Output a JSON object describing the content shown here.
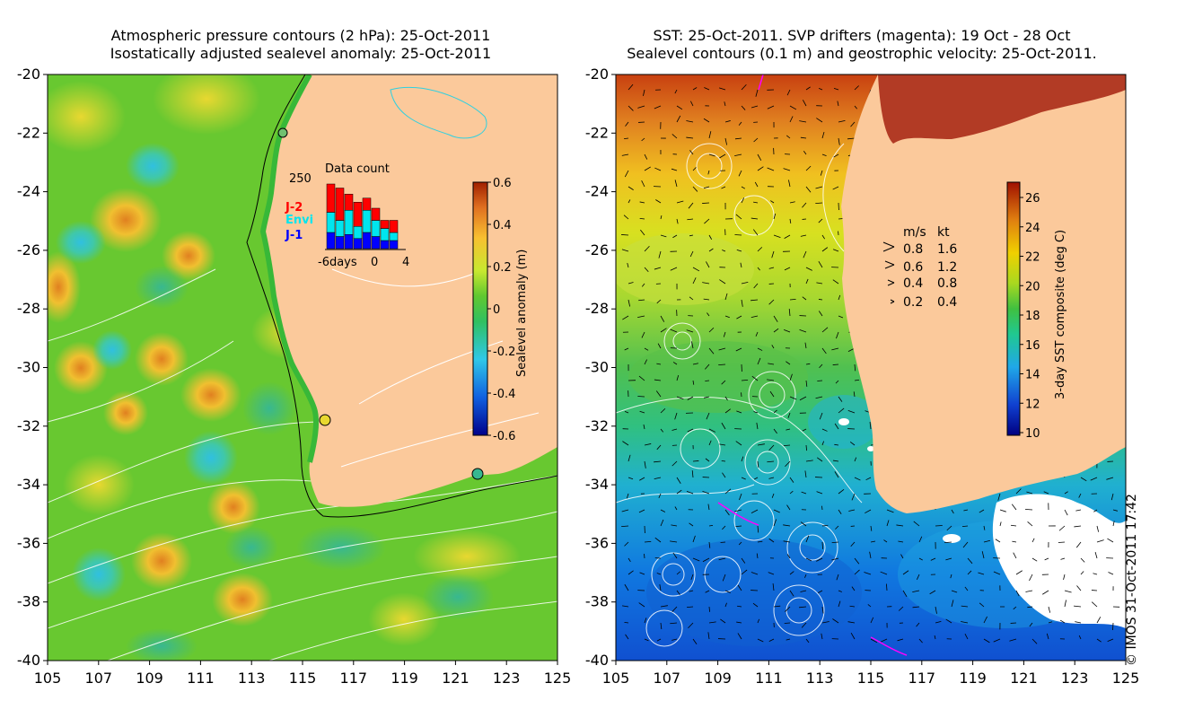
{
  "left_panel": {
    "title_line1": "Atmospheric pressure contours (2 hPa): 25-Oct-2011",
    "title_line2": "Isostatically adjusted sealevel anomaly: 25-Oct-2011",
    "lon_ticks": [
      "105",
      "107",
      "109",
      "111",
      "113",
      "115",
      "117",
      "119",
      "121",
      "123",
      "125"
    ],
    "lat_ticks": [
      "-20",
      "-22",
      "-24",
      "-26",
      "-28",
      "-30",
      "-32",
      "-34",
      "-36",
      "-38",
      "-40"
    ],
    "colorbar": {
      "label": "Sealevel anomaly (m)",
      "ticks": [
        "0.6",
        "0.4",
        "0.2",
        "0",
        "-0.2",
        "-0.4",
        "-0.6"
      ]
    },
    "inset": {
      "title": "Data count",
      "ymax_label": "250",
      "x_labels": [
        "-6days",
        "0",
        "4"
      ],
      "legend": [
        {
          "label": "J-2",
          "color": "#ff0000"
        },
        {
          "label": "Envi",
          "color": "#00e5ee"
        },
        {
          "label": "J-1",
          "color": "#0000ff"
        }
      ]
    }
  },
  "right_panel": {
    "title_line1": "SST: 25-Oct-2011. SVP drifters (magenta): 19 Oct - 28 Oct",
    "title_line2": "Sealevel contours (0.1 m) and geostrophic velocity: 25-Oct-2011.",
    "lon_ticks": [
      "105",
      "107",
      "109",
      "111",
      "113",
      "115",
      "117",
      "119",
      "121",
      "123",
      "125"
    ],
    "lat_ticks": [
      "-20",
      "-22",
      "-24",
      "-26",
      "-28",
      "-30",
      "-32",
      "-34",
      "-36",
      "-38",
      "-40"
    ],
    "colorbar": {
      "label": "3-day SST composite (deg C)",
      "ticks": [
        "26",
        "24",
        "22",
        "20",
        "18",
        "16",
        "14",
        "12",
        "10"
      ]
    },
    "velocity_legend": {
      "header_ms": "m/s",
      "header_kt": "kt",
      "rows": [
        {
          "ms": "0.8",
          "kt": "1.6"
        },
        {
          "ms": "0.6",
          "kt": "1.2"
        },
        {
          "ms": "0.4",
          "kt": "0.8"
        },
        {
          "ms": "0.2",
          "kt": "0.4"
        }
      ]
    }
  },
  "copyright": "© IMOS 31-Oct-2011 17:42",
  "colors": {
    "land": "#fbc99b",
    "sla_ramp": [
      "#00008b",
      "#1060e0",
      "#30c8e8",
      "#30c060",
      "#3ab03a",
      "#c8e830",
      "#f8c030",
      "#e07020",
      "#a02000"
    ],
    "sst_ramp": [
      "#000080",
      "#1040d0",
      "#20a8e8",
      "#20c890",
      "#30c040",
      "#a8d820",
      "#f0d000",
      "#e08010",
      "#a01000"
    ]
  }
}
